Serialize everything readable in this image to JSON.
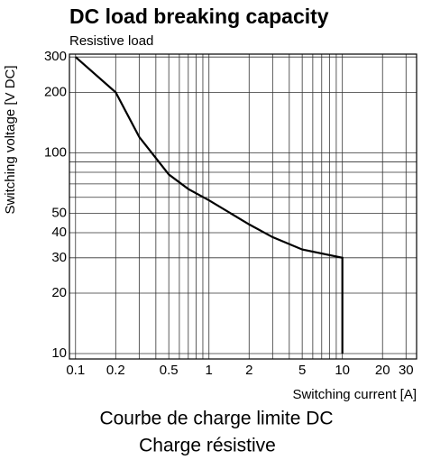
{
  "chart_data": {
    "type": "line",
    "title": "DC load breaking capacity",
    "subtitle": "Resistive load",
    "ylabel": "Switching voltage [V DC]",
    "xlabel": "Switching current [A]",
    "captions": [
      "Courbe de charge limite DC",
      "Charge résistive"
    ],
    "xscale": "log",
    "yscale": "log",
    "xlim": [
      0.09,
      36
    ],
    "ylim": [
      9.4,
      310
    ],
    "xticks": [
      0.1,
      0.2,
      0.5,
      1,
      2,
      5,
      10,
      20,
      30
    ],
    "yticks": [
      10,
      20,
      30,
      40,
      50,
      100,
      200,
      300
    ],
    "x_gridlines": [
      0.1,
      0.2,
      0.3,
      0.4,
      0.5,
      0.6,
      0.7,
      0.8,
      0.9,
      1,
      2,
      3,
      4,
      5,
      6,
      7,
      8,
      9,
      10,
      20,
      30
    ],
    "y_gridlines": [
      10,
      20,
      30,
      40,
      50,
      60,
      70,
      80,
      90,
      100,
      200,
      300
    ],
    "grid": true,
    "series": [
      {
        "color": "#000000",
        "x": [
          0.1,
          0.2,
          0.3,
          0.5,
          0.7,
          1,
          2,
          3,
          5,
          10,
          10
        ],
        "values": [
          300,
          200,
          120,
          78,
          66,
          58,
          44,
          38,
          33,
          30,
          10
        ]
      }
    ]
  }
}
